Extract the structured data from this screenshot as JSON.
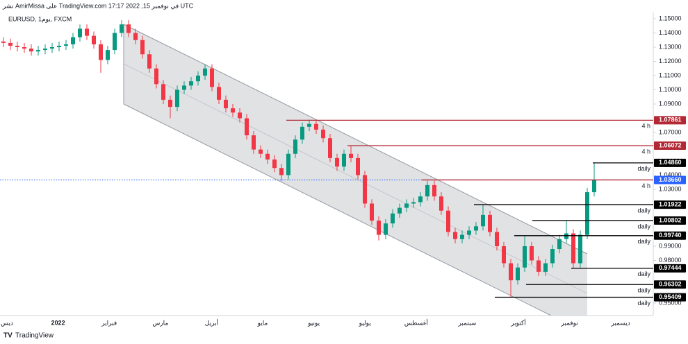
{
  "header": {
    "published": "نشر AmirMissa على TradingView.com في نوفمبر 15, 2022 17:17 UTC",
    "symbol": "EURUSD, يوم1, FXCM"
  },
  "chart_data": {
    "type": "candlestick",
    "open": [
      1.134,
      1.133,
      1.131,
      1.13,
      1.129,
      1.127,
      1.128,
      1.129,
      1.13,
      1.131,
      1.132,
      1.137,
      1.143,
      1.138,
      1.132,
      1.121,
      1.128,
      1.14,
      1.146,
      1.14,
      1.135,
      1.125,
      1.115,
      1.104,
      1.093,
      1.088,
      1.1,
      1.103,
      1.106,
      1.11,
      1.115,
      1.102,
      1.093,
      1.087,
      1.084,
      1.08,
      1.068,
      1.058,
      1.055,
      1.051,
      1.045,
      1.04,
      1.055,
      1.065,
      1.074,
      1.076,
      1.072,
      1.066,
      1.052,
      1.046,
      1.055,
      1.052,
      1.04,
      1.02,
      1.008,
      0.998,
      1.006,
      1.013,
      1.017,
      1.02,
      1.021,
      1.025,
      1.033,
      1.025,
      1.015,
      1.0,
      0.995,
      0.998,
      1.001,
      1.004,
      1.012,
      1.0,
      0.99,
      0.978,
      0.966,
      0.975,
      0.99,
      0.98,
      0.972,
      0.978,
      0.988,
      0.995,
      0.999,
      0.978,
      0.998,
      1.028
    ],
    "high": [
      1.137,
      1.136,
      1.134,
      1.133,
      1.132,
      1.131,
      1.132,
      1.133,
      1.134,
      1.135,
      1.14,
      1.146,
      1.146,
      1.141,
      1.135,
      1.131,
      1.143,
      1.149,
      1.149,
      1.143,
      1.138,
      1.128,
      1.118,
      1.107,
      1.096,
      1.103,
      1.106,
      1.109,
      1.113,
      1.118,
      1.118,
      1.105,
      1.096,
      1.09,
      1.087,
      1.083,
      1.071,
      1.061,
      1.058,
      1.054,
      1.048,
      1.058,
      1.068,
      1.077,
      1.079,
      1.079,
      1.075,
      1.069,
      1.055,
      1.058,
      1.061,
      1.055,
      1.043,
      1.023,
      1.011,
      1.009,
      1.016,
      1.02,
      1.023,
      1.024,
      1.028,
      1.036,
      1.036,
      1.028,
      1.018,
      1.003,
      1.001,
      1.004,
      1.007,
      1.019,
      1.015,
      1.003,
      0.993,
      0.981,
      0.978,
      0.997,
      0.993,
      0.983,
      0.981,
      0.991,
      0.998,
      1.008,
      1.002,
      1.001,
      1.031,
      1.0486
    ],
    "low": [
      1.13,
      1.128,
      1.127,
      1.126,
      1.124,
      1.124,
      1.125,
      1.126,
      1.127,
      1.128,
      1.129,
      1.134,
      1.135,
      1.129,
      1.112,
      1.118,
      1.125,
      1.137,
      1.137,
      1.132,
      1.122,
      1.112,
      1.101,
      1.09,
      1.08,
      1.085,
      1.097,
      1.1,
      1.103,
      1.107,
      1.099,
      1.09,
      1.084,
      1.081,
      1.077,
      1.065,
      1.055,
      1.052,
      1.048,
      1.042,
      1.036,
      1.037,
      1.052,
      1.062,
      1.071,
      1.069,
      1.063,
      1.049,
      1.043,
      1.043,
      1.049,
      1.037,
      1.017,
      1.005,
      0.994,
      0.995,
      1.003,
      1.01,
      1.014,
      1.017,
      1.018,
      1.022,
      1.022,
      1.012,
      0.997,
      0.992,
      0.992,
      0.995,
      0.998,
      1.001,
      0.997,
      0.987,
      0.975,
      0.9541,
      0.963,
      0.972,
      0.977,
      0.969,
      0.969,
      0.975,
      0.985,
      0.992,
      0.9744,
      0.975,
      0.995,
      1.025
    ],
    "close": [
      1.133,
      1.131,
      1.13,
      1.129,
      1.127,
      1.128,
      1.129,
      1.13,
      1.131,
      1.132,
      1.137,
      1.143,
      1.138,
      1.132,
      1.121,
      1.128,
      1.14,
      1.146,
      1.14,
      1.135,
      1.125,
      1.115,
      1.104,
      1.093,
      1.088,
      1.1,
      1.103,
      1.106,
      1.11,
      1.115,
      1.102,
      1.093,
      1.087,
      1.084,
      1.08,
      1.068,
      1.058,
      1.055,
      1.051,
      1.045,
      1.04,
      1.055,
      1.065,
      1.074,
      1.076,
      1.072,
      1.066,
      1.052,
      1.046,
      1.055,
      1.052,
      1.04,
      1.02,
      1.008,
      0.998,
      1.006,
      1.013,
      1.017,
      1.02,
      1.021,
      1.025,
      1.033,
      1.025,
      1.015,
      1.0,
      0.995,
      0.998,
      1.001,
      1.004,
      1.012,
      1.0,
      0.99,
      0.978,
      0.966,
      0.975,
      0.99,
      0.98,
      0.972,
      0.978,
      0.988,
      0.995,
      0.999,
      0.978,
      0.998,
      1.028,
      1.0366
    ],
    "up_color": "#089981",
    "down_color": "#f23645",
    "ylim": [
      0.9412,
      1.1544
    ],
    "yticks": [
      {
        "value": 1.15,
        "label": "1.15000"
      },
      {
        "value": 1.14,
        "label": "1.14000"
      },
      {
        "value": 1.13,
        "label": "1.13000"
      },
      {
        "value": 1.12,
        "label": "1.12000"
      },
      {
        "value": 1.11,
        "label": "1.11000"
      },
      {
        "value": 1.1,
        "label": "1.10000"
      },
      {
        "value": 1.09,
        "label": "1.09000"
      },
      {
        "value": 1.07,
        "label": "1.07000"
      },
      {
        "value": 1.04,
        "label": "1.04000"
      },
      {
        "value": 1.03,
        "label": "1.03000"
      },
      {
        "value": 0.99,
        "label": "0.99000"
      },
      {
        "value": 0.98,
        "label": "0.98000"
      },
      {
        "value": 0.95,
        "label": "0.95000"
      }
    ],
    "xticks": [
      "ديس",
      "2022",
      "فبراير",
      "مارس",
      "أبريل",
      "مايو",
      "يونيو",
      "يوليو",
      "أغسطس",
      "سبتمبر",
      "أكتوبر",
      "نوفمبر",
      "ديسمبر"
    ],
    "levels": [
      {
        "value": 1.07861,
        "label": "1.07861",
        "note": "4 h",
        "color": "#b22833"
      },
      {
        "value": 1.06072,
        "label": "1.06072",
        "note": "4 h",
        "color": "#b22833"
      },
      {
        "value": 1.0486,
        "label": "1.04860",
        "note": "daily",
        "color": "#000000"
      },
      {
        "value": 1.0366,
        "note": "4 h",
        "color": "#b22833"
      },
      {
        "value": 1.01922,
        "label": "1.01922",
        "note": "daily",
        "color": "#000000"
      },
      {
        "value": 1.00802,
        "label": "1.00802",
        "note": "daily",
        "color": "#000000"
      },
      {
        "value": 0.9974,
        "label": "0.99740",
        "note": "daily",
        "color": "#000000"
      },
      {
        "value": 0.97444,
        "label": "0.97444",
        "note": "daily",
        "color": "#000000"
      },
      {
        "value": 0.96302,
        "label": "0.96302",
        "note": "daily",
        "color": "#000000"
      },
      {
        "value": 0.95409,
        "label": "0.95409",
        "note": "daily",
        "color": "#000000"
      }
    ],
    "last_price": {
      "value": 1.0366,
      "label": "1.03660",
      "color": "#2962ff"
    }
  },
  "footer": {
    "brand": "TradingView"
  }
}
